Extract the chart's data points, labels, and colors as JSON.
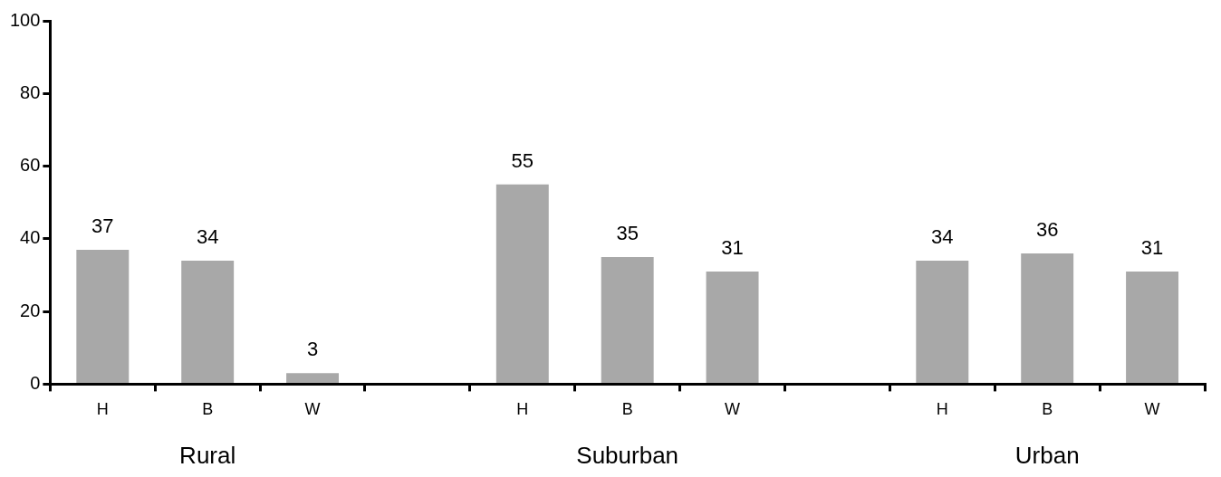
{
  "chart_data": {
    "type": "bar",
    "categories": [
      "H",
      "B",
      "W",
      null,
      "H",
      "B",
      "W",
      null,
      "H",
      "B",
      "W"
    ],
    "values": [
      37,
      34,
      3,
      null,
      55,
      35,
      31,
      null,
      34,
      36,
      31
    ],
    "color": "#a8a8a8",
    "ylim": [
      0,
      100
    ],
    "yticks": [
      0,
      20,
      40,
      60,
      80,
      100
    ],
    "grid": false,
    "legend": false,
    "data_labels": true,
    "annotations": [
      "Rural",
      "Suburban",
      "Urban"
    ]
  }
}
